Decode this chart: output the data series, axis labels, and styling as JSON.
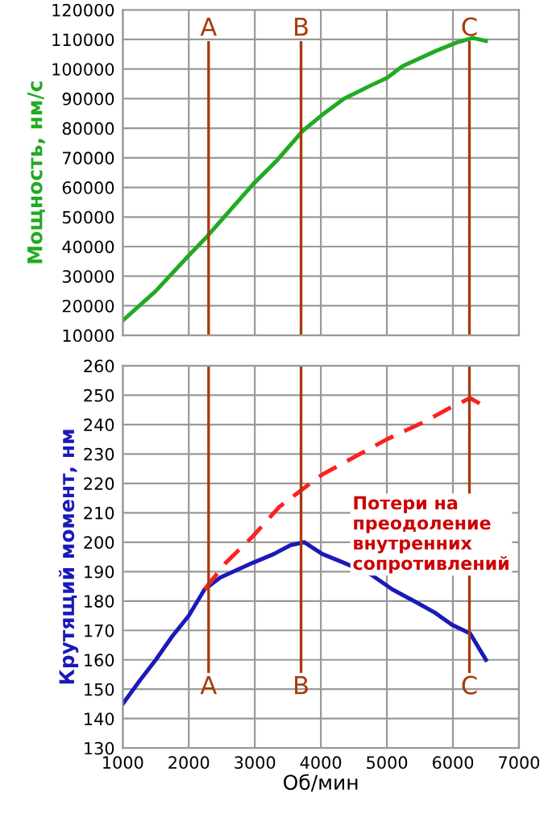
{
  "chart_data": [
    {
      "type": "line",
      "ylabel": "Мощность, нм/с",
      "xlim": [
        1000,
        7000
      ],
      "xticks": [
        1000,
        2000,
        3000,
        4000,
        5000,
        6000,
        7000
      ],
      "ylim": [
        10000,
        120000
      ],
      "yticks": [
        10000,
        20000,
        30000,
        40000,
        50000,
        60000,
        70000,
        80000,
        90000,
        100000,
        110000,
        120000
      ],
      "grid": true,
      "tick_labels": "y",
      "series": [
        {
          "color": "#22aa22",
          "line_style": "solid",
          "x": [
            1000,
            1500,
            2000,
            2280,
            2970,
            3330,
            3720,
            4020,
            4350,
            4760,
            5000,
            5240,
            5730,
            6060,
            6300,
            6500
          ],
          "values": [
            15000,
            25000,
            37000,
            43500,
            61000,
            69000,
            79000,
            84500,
            90000,
            94500,
            97000,
            101000,
            106000,
            109000,
            110500,
            109500
          ]
        }
      ],
      "ref_lines": [
        {
          "axis": "x",
          "value": 2300,
          "label": "A",
          "color": "#a83a0a"
        },
        {
          "axis": "x",
          "value": 3700,
          "label": "B",
          "color": "#a83a0a"
        },
        {
          "axis": "x",
          "value": 6250,
          "label": "C",
          "color": "#a83a0a"
        }
      ]
    },
    {
      "type": "line",
      "ylabel": "Крутящий момент, нм",
      "xlabel": "Об/мин",
      "xlim": [
        1000,
        7000
      ],
      "xticks": [
        1000,
        2000,
        3000,
        4000,
        5000,
        6000,
        7000
      ],
      "ylim": [
        130,
        260
      ],
      "yticks": [
        130,
        140,
        150,
        160,
        170,
        180,
        190,
        200,
        210,
        220,
        230,
        240,
        250,
        260
      ],
      "grid": true,
      "series": [
        {
          "color": "#1a1ab8",
          "line_style": "solid",
          "x": [
            1000,
            1260,
            1500,
            1750,
            2000,
            2240,
            2480,
            2970,
            3290,
            3540,
            3750,
            4020,
            4350,
            4760,
            5080,
            5410,
            5730,
            5980,
            6260,
            6500
          ],
          "values": [
            145,
            153,
            160,
            168,
            175,
            184,
            188,
            193,
            196,
            199,
            200,
            196,
            193,
            189,
            184,
            180,
            176,
            172,
            169,
            160
          ]
        },
        {
          "color": "#ff2020",
          "line_style": "dashed",
          "x": [
            2240,
            2560,
            2970,
            3370,
            3780,
            4020,
            4510,
            5000,
            5570,
            5980,
            6260,
            6500
          ],
          "values": [
            184,
            193,
            202,
            212,
            219,
            223,
            229,
            235,
            241,
            246,
            249,
            246
          ]
        }
      ],
      "ref_lines": [
        {
          "axis": "x",
          "value": 2300,
          "label": "A",
          "color": "#a83a0a"
        },
        {
          "axis": "x",
          "value": 3700,
          "label": "B",
          "color": "#a83a0a"
        },
        {
          "axis": "x",
          "value": 6250,
          "label": "C",
          "color": "#a83a0a"
        }
      ],
      "annotations": [
        "Потери на преодоление внутренних сопротивлений"
      ]
    }
  ]
}
